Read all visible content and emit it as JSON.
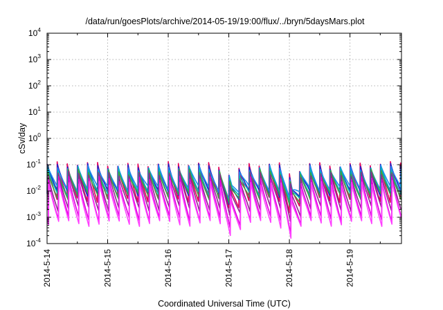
{
  "chart_data": {
    "type": "line",
    "title": "/data/run/goesPlots/archive/2014-05-19/19:00/flux/../bryn/5daysMars.plot",
    "xlabel": "Coordinated Universal Time (UTC)",
    "ylabel": "cSv/day",
    "yscale": "log",
    "ylim_exponents": [
      -4,
      4
    ],
    "y_ticks": [
      {
        "base": "10",
        "exp": "-4"
      },
      {
        "base": "10",
        "exp": "-3"
      },
      {
        "base": "10",
        "exp": "-2"
      },
      {
        "base": "10",
        "exp": "-1"
      },
      {
        "base": "10",
        "exp": "0"
      },
      {
        "base": "10",
        "exp": "1"
      },
      {
        "base": "10",
        "exp": "2"
      },
      {
        "base": "10",
        "exp": "3"
      },
      {
        "base": "10",
        "exp": "4"
      }
    ],
    "x_ticks": [
      "2014-5-14",
      "2014-5-15",
      "2014-5-16",
      "2014-5-17",
      "2014-5-18",
      "2014-5-19"
    ],
    "xlim_days": [
      0,
      5.85
    ],
    "grid": true,
    "legend": "none",
    "cycle_days": 0.1667,
    "dips": [
      {
        "day": 3.05,
        "depth": 0.35
      },
      {
        "day": 4.05,
        "depth": 0.25
      }
    ],
    "series": [
      {
        "color": "#e4005a",
        "peak": 0.105,
        "trough": 0.0048
      },
      {
        "color": "#2020c8",
        "peak": 0.09,
        "trough": 0.0085
      },
      {
        "color": "#1c8cf0",
        "peak": 0.078,
        "trough": 0.012
      },
      {
        "color": "#00b4b4",
        "peak": 0.065,
        "trough": 0.0075
      },
      {
        "color": "#40a040",
        "peak": 0.055,
        "trough": 0.006
      },
      {
        "color": "#8c2a8c",
        "peak": 0.045,
        "trough": 0.0022
      },
      {
        "color": "#e000e0",
        "peak": 0.03,
        "trough": 0.0009
      },
      {
        "color": "#ff40ff",
        "peak": 0.02,
        "trough": 0.0006
      }
    ]
  }
}
